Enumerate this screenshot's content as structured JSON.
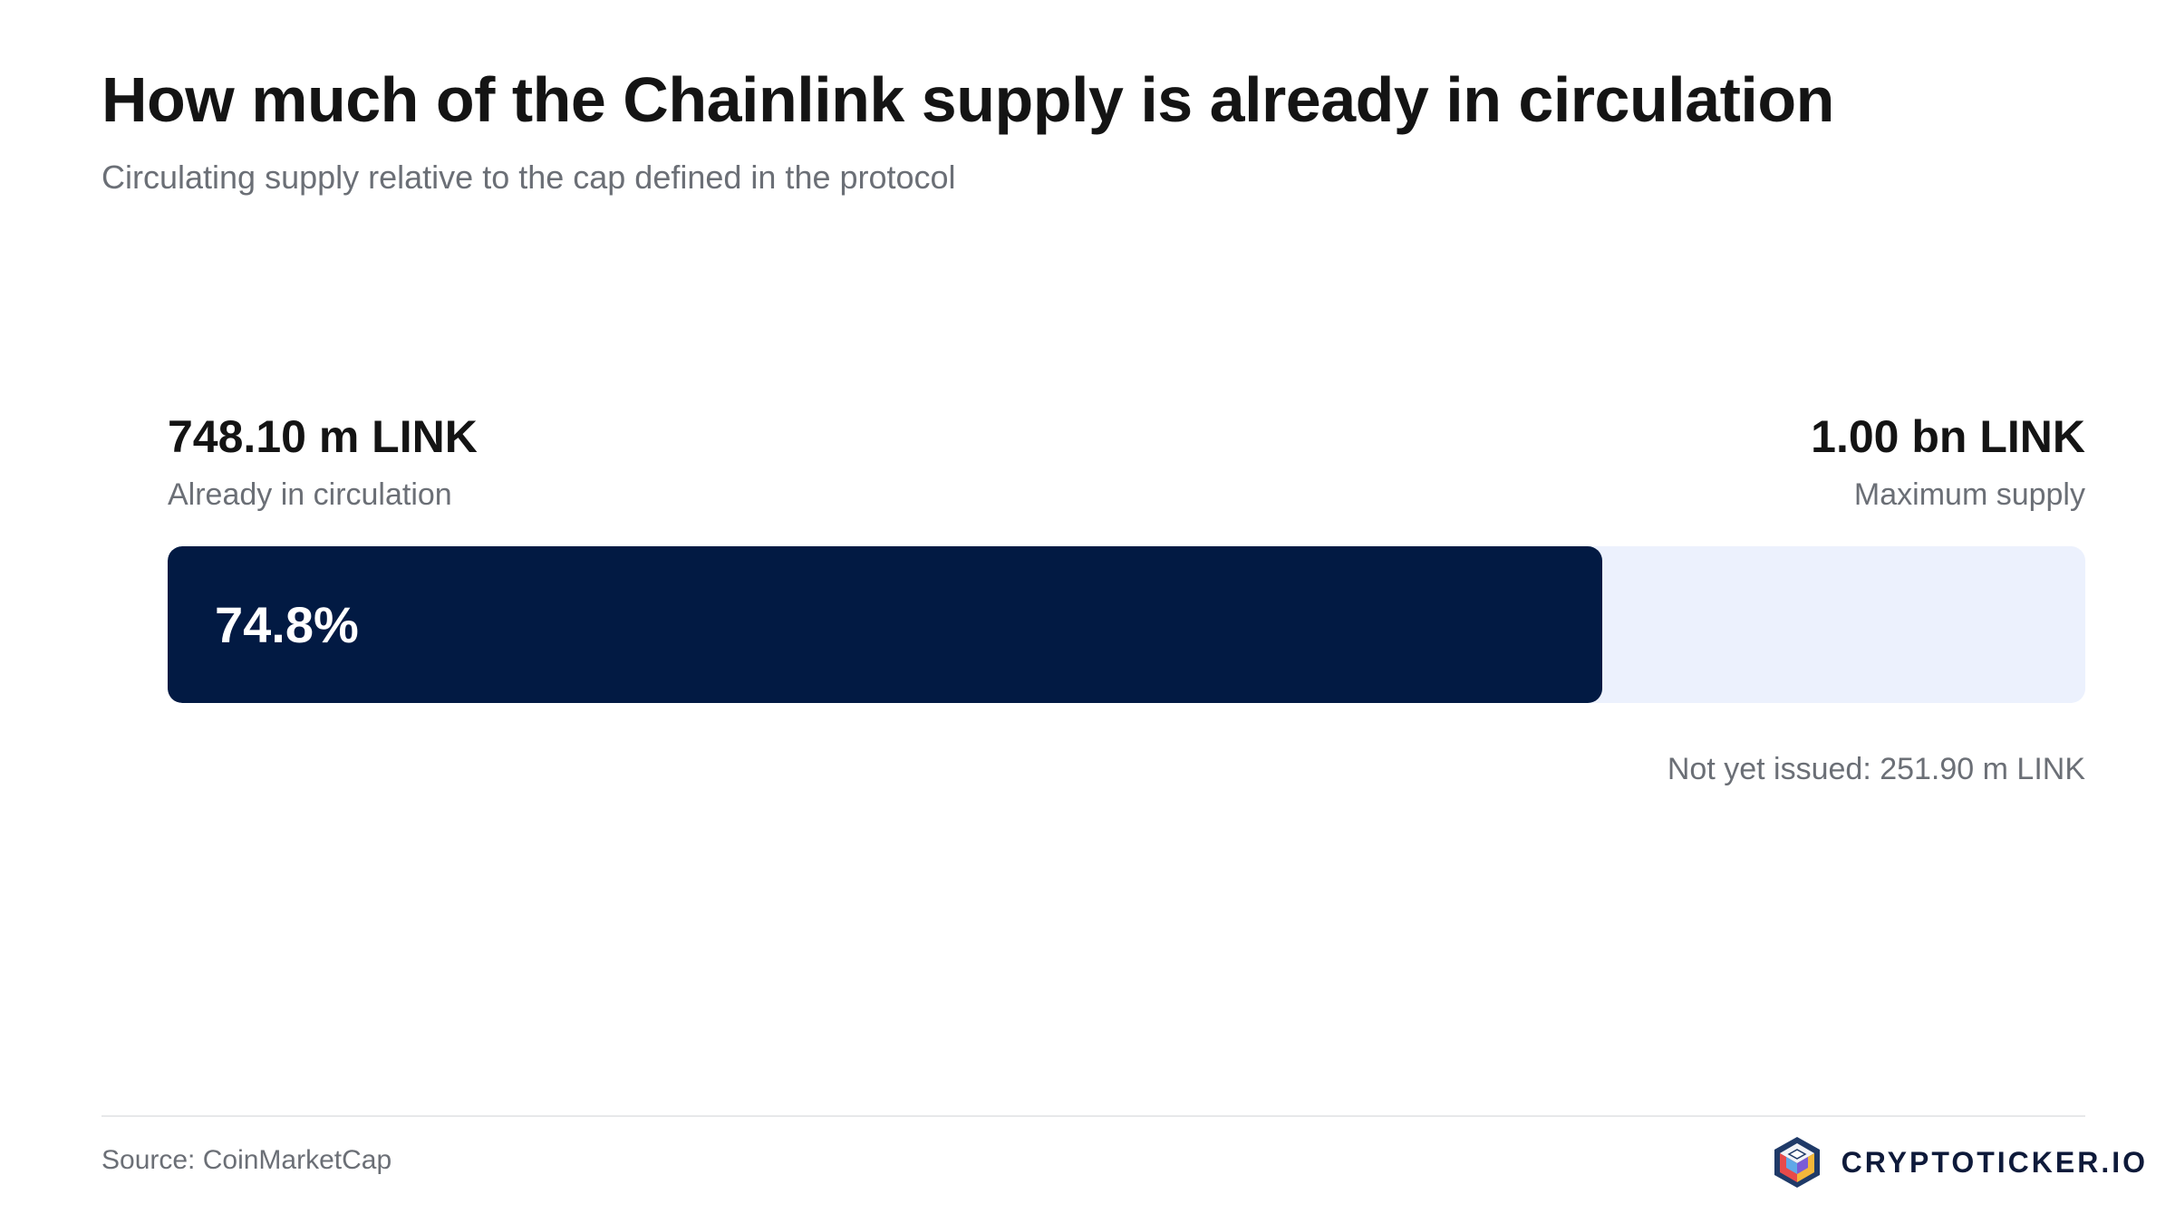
{
  "chart_data": {
    "type": "bar",
    "title": "How much of the Chainlink supply is already in circulation",
    "subtitle": "Circulating supply relative to the cap defined in the protocol",
    "circulating": {
      "value_label": "748.10 m LINK",
      "label": "Already in circulation",
      "value": 748.1
    },
    "max_supply": {
      "value_label": "1.00 bn LINK",
      "label": "Maximum supply",
      "value": 1000.0
    },
    "percent": 74.8,
    "percent_label": "74.8%",
    "remaining_label": "Not yet issued: 251.90 m LINK",
    "colors": {
      "fill": "#021a43",
      "track": "#ecf1fd"
    }
  },
  "footer": {
    "source": "Source: CoinMarketCap",
    "brand": "CRYPTOTICKER.IO",
    "brand_logo_icon": "cube-logo-icon"
  }
}
